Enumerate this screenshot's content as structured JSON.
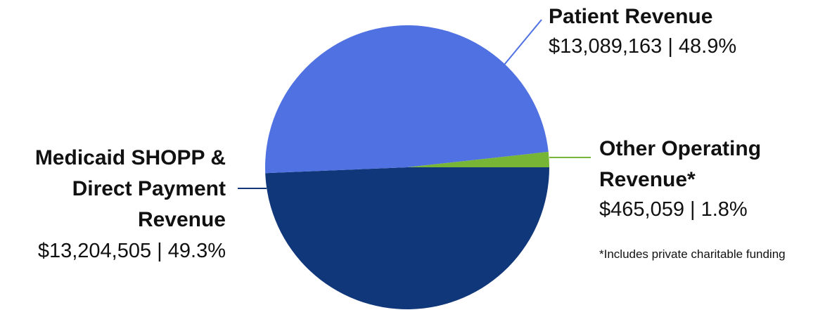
{
  "chart_data": {
    "type": "pie",
    "title": "",
    "slices": [
      {
        "label": "Patient Revenue",
        "display_label": "Patient Revenue",
        "value": 13089163,
        "value_text": "$13,089,163",
        "percent": 48.9,
        "percent_text": "48.9%",
        "color": "#5071E2"
      },
      {
        "label": "Other Operating Revenue*",
        "display_label": "Other Operating\nRevenue*",
        "value": 465059,
        "value_text": "$465,059",
        "percent": 1.8,
        "percent_text": "1.8%",
        "color": "#76B536"
      },
      {
        "label": "Medicaid SHOPP & Direct Payment Revenue",
        "display_label": "Medicaid SHOPP &\nDirect Payment\nRevenue",
        "value": 13204505,
        "value_text": "$13,204,505",
        "percent": 49.3,
        "percent_text": "49.3%",
        "color": "#10377A"
      }
    ],
    "leader_colors": {
      "patient": "#5071E2",
      "other": "#76B536",
      "medicaid": "#10377A"
    },
    "footnote": "*Includes private charitable funding"
  },
  "labels": {
    "patient": {
      "name": "Patient Revenue",
      "value": "$13,089,163 | 48.9%"
    },
    "other": {
      "name": "Other Operating\nRevenue*",
      "value": "$465,059 | 1.8%"
    },
    "medicaid": {
      "name": "Medicaid SHOPP &\nDirect Payment\nRevenue",
      "value": "$13,204,505 | 49.3%"
    }
  }
}
